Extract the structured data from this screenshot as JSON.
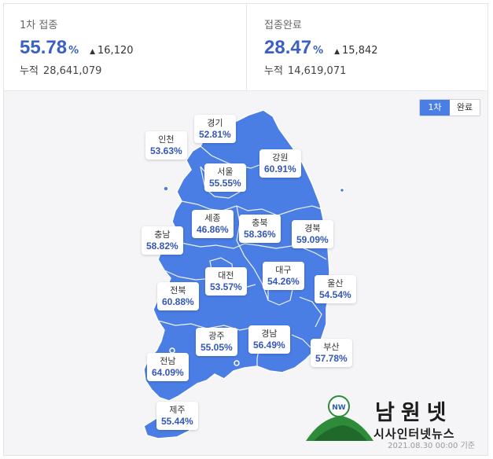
{
  "first_dose": {
    "label": "1차 접종",
    "pct": "55.78",
    "unit": "%",
    "delta": "16,120",
    "cum_label": "누적",
    "cum_value": "28,641,079"
  },
  "full": {
    "label": "접종완료",
    "pct": "28.47",
    "unit": "%",
    "delta": "15,842",
    "cum_label": "누적",
    "cum_value": "14,619,071"
  },
  "toggle": {
    "first": "1차",
    "second": "완료"
  },
  "colors": {
    "map": "#4a7ee5",
    "accent": "#3b5fc2"
  },
  "regions": [
    {
      "name": "인천",
      "value": "53.63%"
    },
    {
      "name": "경기",
      "value": "52.81%"
    },
    {
      "name": "강원",
      "value": "60.91%"
    },
    {
      "name": "서울",
      "value": "55.55%"
    },
    {
      "name": "세종",
      "value": "46.86%"
    },
    {
      "name": "충북",
      "value": "58.36%"
    },
    {
      "name": "경북",
      "value": "59.09%"
    },
    {
      "name": "충남",
      "value": "58.82%"
    },
    {
      "name": "대전",
      "value": "53.57%"
    },
    {
      "name": "대구",
      "value": "54.26%"
    },
    {
      "name": "울산",
      "value": "54.54%"
    },
    {
      "name": "전북",
      "value": "60.88%"
    },
    {
      "name": "광주",
      "value": "55.05%"
    },
    {
      "name": "경남",
      "value": "56.49%"
    },
    {
      "name": "부산",
      "value": "57.78%"
    },
    {
      "name": "전남",
      "value": "64.09%"
    },
    {
      "name": "제주",
      "value": "55.44%"
    }
  ],
  "logo": {
    "title": "남원넷",
    "subtitle": "시사인터넷뉴스",
    "emblem_text": "NW"
  },
  "timestamp": "2021.08.30 00:00 기준"
}
